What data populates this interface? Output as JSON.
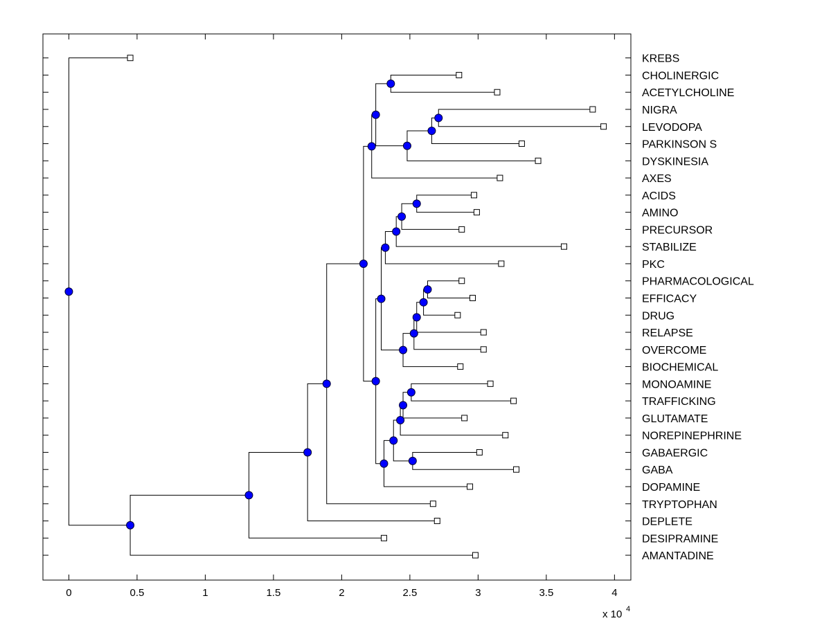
{
  "chart_data": {
    "type": "dendrogram",
    "title": "",
    "xlabel": "",
    "ylabel": "",
    "x_exponent_label": "x 10",
    "x_exponent": "4",
    "xlim": [
      -0.19,
      4.12
    ],
    "ylim": [
      -0.4,
      31.45
    ],
    "x_scale_factor": 10000,
    "x_ticks": [
      0,
      0.5,
      1,
      1.5,
      2,
      2.5,
      3,
      3.5,
      4
    ],
    "x_tick_labels": [
      "0",
      "0.5",
      "1",
      "1.5",
      "2",
      "2.5",
      "3",
      "3.5",
      "4"
    ],
    "grid": false,
    "leaf_label_side": "right",
    "colors": {
      "node_fill": "#0000ff",
      "node_edge": "#000033",
      "leaf_fill": "#ffffff",
      "line": "#000000"
    },
    "leaves": [
      {
        "id": "L1",
        "label": "KREBS",
        "height": 0.45
      },
      {
        "id": "L2",
        "label": "CHOLINERGIC",
        "height": 2.86
      },
      {
        "id": "L3",
        "label": "ACETYLCHOLINE",
        "height": 3.14
      },
      {
        "id": "L4",
        "label": "NIGRA",
        "height": 3.84
      },
      {
        "id": "L5",
        "label": "LEVODOPA",
        "height": 3.92
      },
      {
        "id": "L6",
        "label": "PARKINSON S",
        "height": 3.32
      },
      {
        "id": "L7",
        "label": "DYSKINESIA",
        "height": 3.44
      },
      {
        "id": "L8",
        "label": "AXES",
        "height": 3.16
      },
      {
        "id": "L9",
        "label": "ACIDS",
        "height": 2.97
      },
      {
        "id": "L10",
        "label": "AMINO",
        "height": 2.99
      },
      {
        "id": "L11",
        "label": "PRECURSOR",
        "height": 2.88
      },
      {
        "id": "L12",
        "label": "STABILIZE",
        "height": 3.63
      },
      {
        "id": "L13",
        "label": "PKC",
        "height": 3.17
      },
      {
        "id": "L14",
        "label": "PHARMACOLOGICAL",
        "height": 2.88
      },
      {
        "id": "L15",
        "label": "EFFICACY",
        "height": 2.96
      },
      {
        "id": "L16",
        "label": "DRUG",
        "height": 2.85
      },
      {
        "id": "L17",
        "label": "RELAPSE",
        "height": 3.04
      },
      {
        "id": "L18",
        "label": "OVERCOME",
        "height": 3.04
      },
      {
        "id": "L19",
        "label": "BIOCHEMICAL",
        "height": 2.87
      },
      {
        "id": "L20",
        "label": "MONOAMINE",
        "height": 3.09
      },
      {
        "id": "L21",
        "label": "TRAFFICKING",
        "height": 3.26
      },
      {
        "id": "L22",
        "label": "GLUTAMATE",
        "height": 2.9
      },
      {
        "id": "L23",
        "label": "NOREPINEPHRINE",
        "height": 3.2
      },
      {
        "id": "L24",
        "label": "GABAERGIC",
        "height": 3.01
      },
      {
        "id": "L25",
        "label": "GABA",
        "height": 3.28
      },
      {
        "id": "L26",
        "label": "DOPAMINE",
        "height": 2.94
      },
      {
        "id": "L27",
        "label": "TRYPTOPHAN",
        "height": 2.67
      },
      {
        "id": "L28",
        "label": "DEPLETE",
        "height": 2.7
      },
      {
        "id": "L29",
        "label": "DESIPRAMINE",
        "height": 2.31
      },
      {
        "id": "L30",
        "label": "AMANTADINE",
        "height": 2.98
      }
    ],
    "nodes": [
      {
        "id": "N1",
        "height": 2.36,
        "children": [
          "L2",
          "L3"
        ]
      },
      {
        "id": "N2",
        "height": 2.71,
        "children": [
          "L4",
          "L5"
        ]
      },
      {
        "id": "N3",
        "height": 2.66,
        "children": [
          "N2",
          "L6"
        ]
      },
      {
        "id": "N4",
        "height": 2.48,
        "children": [
          "N3",
          "L7"
        ]
      },
      {
        "id": "N5",
        "height": 2.25,
        "children": [
          "N1",
          "N4"
        ]
      },
      {
        "id": "N6",
        "height": 2.22,
        "children": [
          "N5",
          "L8"
        ]
      },
      {
        "id": "N7",
        "height": 2.55,
        "children": [
          "L9",
          "L10"
        ]
      },
      {
        "id": "N8",
        "height": 2.44,
        "children": [
          "N7",
          "L11"
        ]
      },
      {
        "id": "N9",
        "height": 2.4,
        "children": [
          "N8",
          "L12"
        ]
      },
      {
        "id": "N10",
        "height": 2.32,
        "children": [
          "N9",
          "L13"
        ]
      },
      {
        "id": "N11",
        "height": 2.63,
        "children": [
          "L14",
          "L15"
        ]
      },
      {
        "id": "N12",
        "height": 2.6,
        "children": [
          "N11",
          "L16"
        ]
      },
      {
        "id": "N13",
        "height": 2.55,
        "children": [
          "N12",
          "L17"
        ]
      },
      {
        "id": "N14",
        "height": 2.53,
        "children": [
          "N13",
          "L18"
        ]
      },
      {
        "id": "N15",
        "height": 2.45,
        "children": [
          "N14",
          "L19"
        ]
      },
      {
        "id": "N16",
        "height": 2.29,
        "children": [
          "N10",
          "N15"
        ]
      },
      {
        "id": "N17",
        "height": 2.51,
        "children": [
          "L20",
          "L21"
        ]
      },
      {
        "id": "N18",
        "height": 2.45,
        "children": [
          "N17",
          "L22"
        ]
      },
      {
        "id": "N19",
        "height": 2.43,
        "children": [
          "N18",
          "L23"
        ]
      },
      {
        "id": "N20",
        "height": 2.52,
        "children": [
          "L24",
          "L25"
        ]
      },
      {
        "id": "N21",
        "height": 2.38,
        "children": [
          "N19",
          "N20"
        ]
      },
      {
        "id": "N22",
        "height": 2.31,
        "children": [
          "N21",
          "L26"
        ]
      },
      {
        "id": "N23",
        "height": 2.25,
        "children": [
          "N16",
          "N22"
        ]
      },
      {
        "id": "N24",
        "height": 2.16,
        "children": [
          "N6",
          "N23"
        ]
      },
      {
        "id": "N25",
        "height": 1.89,
        "children": [
          "N24",
          "L27"
        ]
      },
      {
        "id": "N26",
        "height": 1.75,
        "children": [
          "N25",
          "L28"
        ]
      },
      {
        "id": "N27",
        "height": 1.32,
        "children": [
          "N26",
          "L29"
        ]
      },
      {
        "id": "N28",
        "height": 0.45,
        "children": [
          "N27",
          "L30"
        ]
      },
      {
        "id": "N29",
        "height": 0.0,
        "children": [
          "L1",
          "N28"
        ]
      }
    ]
  }
}
